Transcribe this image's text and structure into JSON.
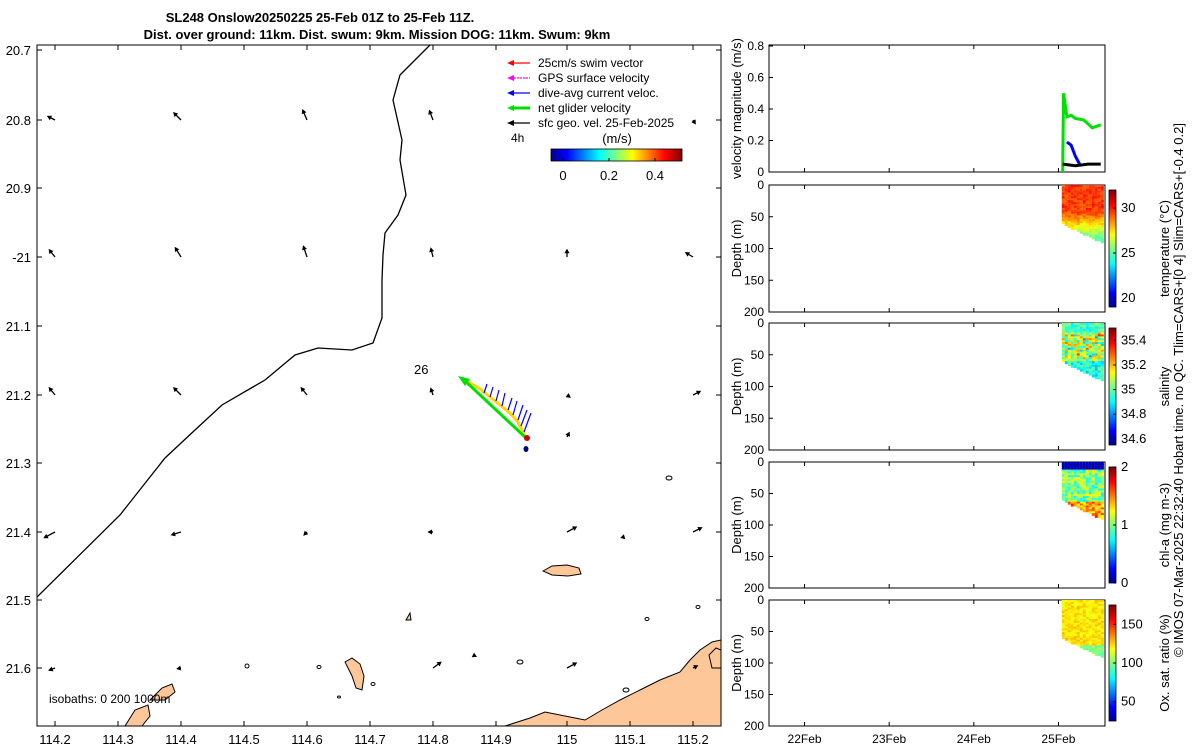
{
  "header": {
    "title_line1": "SL248 Onslow20250225 25-Feb 01Z to 25-Feb 11Z.",
    "title_line2": "Dist. over ground: 11km. Dist. swum: 9km. Mission DOG: 11km. Swum: 9km"
  },
  "map": {
    "legend": [
      {
        "label": "25cm/s swim vector",
        "color": "#ff0000"
      },
      {
        "label": "GPS surface velocity",
        "color": "#ff00ff"
      },
      {
        "label": "dive-avg current veloc.",
        "color": "#0000ff"
      },
      {
        "label": "net glider velocity",
        "color": "#00e000"
      },
      {
        "label": "sfc geo. vel. 25-Feb-2025",
        "color": "#000000"
      }
    ],
    "legend_extra": "4h",
    "colorbar": {
      "title": "(m/s)",
      "ticks": [
        "0",
        "0.2",
        "0.4"
      ]
    },
    "dive_label": "26",
    "isobaths_label": "isobaths: 0   200  1000m",
    "lat_ticks": [
      "20.7",
      "20.8",
      "20.9",
      "-21",
      "21.1",
      "21.2",
      "21.3",
      "21.4",
      "21.5",
      "21.6"
    ],
    "lon_ticks": [
      "114.2",
      "114.3",
      "114.4",
      "114.5",
      "114.6",
      "114.7",
      "114.8",
      "114.9",
      "115",
      "115.1",
      "115.2"
    ]
  },
  "chart_data": [
    {
      "type": "line",
      "title": "",
      "ylabel": "velocity magnitude (m/s)",
      "xlabel": "",
      "ylim": [
        0,
        0.8
      ],
      "yticks": [
        "0",
        "0.2",
        "0.4",
        "0.6",
        "0.8"
      ],
      "x_ticks": [
        "22Feb",
        "23Feb",
        "24Feb",
        "25Feb"
      ],
      "series": [
        {
          "name": "net glider velocity",
          "color": "#00e000",
          "x": [
            25.05,
            25.06,
            25.1,
            25.15,
            25.2,
            25.3,
            25.4,
            25.5
          ],
          "values": [
            0.0,
            0.5,
            0.35,
            0.36,
            0.34,
            0.33,
            0.28,
            0.3
          ]
        },
        {
          "name": "dive-avg current",
          "color": "#0000ff",
          "x": [
            25.1,
            25.15,
            25.2,
            25.25
          ],
          "values": [
            0.19,
            0.17,
            0.1,
            0.05
          ]
        },
        {
          "name": "surface geo velocity",
          "color": "#000000",
          "x": [
            25.05,
            25.2,
            25.35,
            25.5
          ],
          "values": [
            0.05,
            0.04,
            0.05,
            0.05
          ]
        }
      ]
    },
    {
      "type": "heatmap",
      "ylabel": "Depth (m)",
      "yticks": [
        "0",
        "50",
        "100",
        "150",
        "200"
      ],
      "colorbar_label": "temperature (°C)",
      "colorbar_ticks": [
        "20",
        "25",
        "30"
      ],
      "clim": [
        19,
        32
      ]
    },
    {
      "type": "heatmap",
      "ylabel": "Depth (m)",
      "yticks": [
        "0",
        "50",
        "100",
        "150",
        "200"
      ],
      "colorbar_label": "salinity",
      "colorbar_ticks": [
        "34.6",
        "34.8",
        "35",
        "35.2",
        "35.4"
      ],
      "clim": [
        34.55,
        35.5
      ]
    },
    {
      "type": "heatmap",
      "ylabel": "Depth (m)",
      "yticks": [
        "0",
        "50",
        "100",
        "150",
        "200"
      ],
      "colorbar_label": "chl-a (mg m-3)",
      "colorbar_ticks": [
        "0",
        "1",
        "2"
      ],
      "clim": [
        0,
        2
      ]
    },
    {
      "type": "heatmap",
      "ylabel": "Depth (m)",
      "yticks": [
        "0",
        "50",
        "100",
        "150",
        "200"
      ],
      "colorbar_label": "Ox. sat. ratio (%)",
      "colorbar_ticks": [
        "50",
        "100",
        "150"
      ],
      "clim": [
        25,
        175
      ]
    }
  ],
  "footer": {
    "vertical_note": "© IMOS 07-Mar-2025 22:32:40 Hobart time. no QC. Tlim=CARS+[0 4] Slim=CARS+[-0.4 0.2]"
  }
}
